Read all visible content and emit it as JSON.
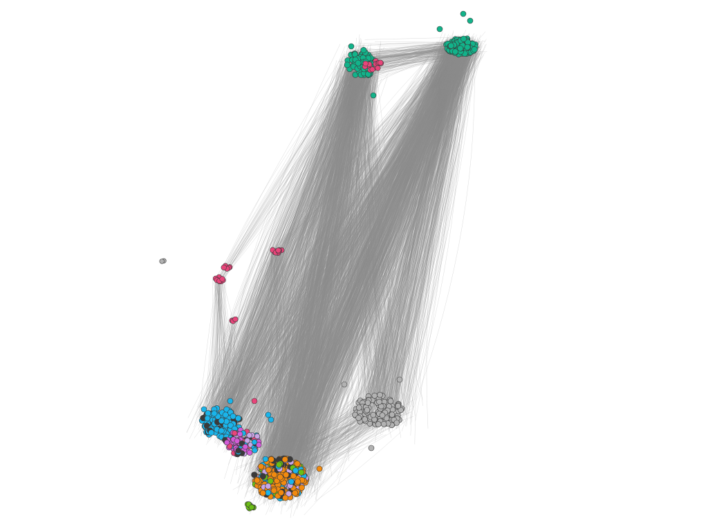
{
  "graph": {
    "background": "#ffffff",
    "edge_color": "#8c8c8c",
    "node_outline": "#3a3a3a",
    "palette": {
      "teal": "#12b38a",
      "pink": "#e8457a",
      "sky": "#1ab4ea",
      "orange": "#f28a0f",
      "gray": "#b2b2b2",
      "magenta": "#d35cd8",
      "green": "#6bbf14",
      "lavender": "#c8a6e6",
      "black": "#3a3a3a"
    },
    "clusters": [
      {
        "id": "teal-upper-right",
        "color": "teal"
      },
      {
        "id": "teal-upper-left",
        "color": "teal"
      },
      {
        "id": "pink-upper-left",
        "color": "pink"
      },
      {
        "id": "pink-small-1",
        "color": "pink"
      },
      {
        "id": "pink-small-2",
        "color": "pink"
      },
      {
        "id": "pink-small-3",
        "color": "pink"
      },
      {
        "id": "pink-small-4",
        "color": "pink"
      },
      {
        "id": "gray-isolate",
        "color": "gray"
      },
      {
        "id": "sky-left",
        "color": "sky"
      },
      {
        "id": "magenta-mixed",
        "color": "magenta"
      },
      {
        "id": "orange-bottom",
        "color": "orange"
      },
      {
        "id": "gray-right",
        "color": "gray"
      },
      {
        "id": "green-bottom",
        "color": "green"
      }
    ]
  }
}
